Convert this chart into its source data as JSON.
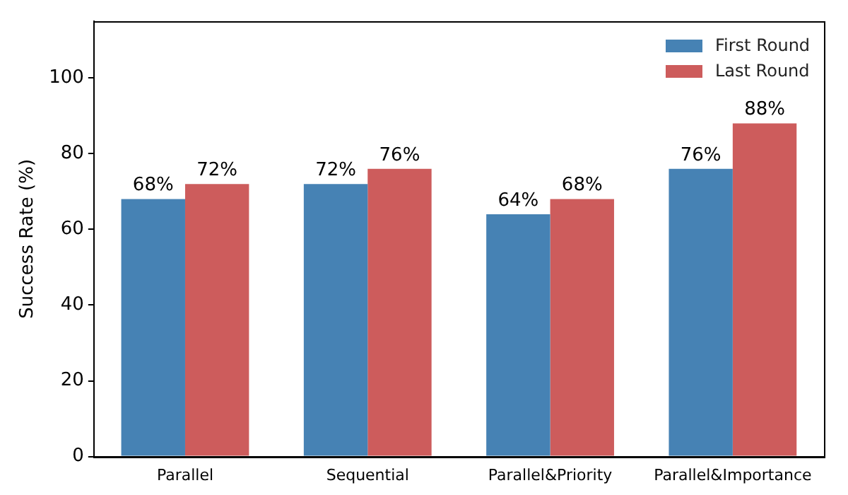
{
  "chart_data": {
    "type": "bar",
    "ylabel": "Success Rate (%)",
    "categories": [
      "Parallel",
      "Sequential",
      "Parallel&Priority",
      "Parallel&Importance"
    ],
    "series": [
      {
        "name": "First Round",
        "color": "#4682b4",
        "values": [
          68,
          72,
          64,
          76
        ],
        "value_labels": [
          "68%",
          "72%",
          "64%",
          "76%"
        ]
      },
      {
        "name": "Last Round",
        "color": "#cd5c5c",
        "values": [
          72,
          76,
          68,
          88
        ],
        "value_labels": [
          "72%",
          "76%",
          "68%",
          "88%"
        ]
      }
    ],
    "ylim": [
      0,
      115
    ],
    "yticks": [
      0,
      20,
      40,
      60,
      80,
      100
    ],
    "grid": false,
    "legend": "top right"
  }
}
